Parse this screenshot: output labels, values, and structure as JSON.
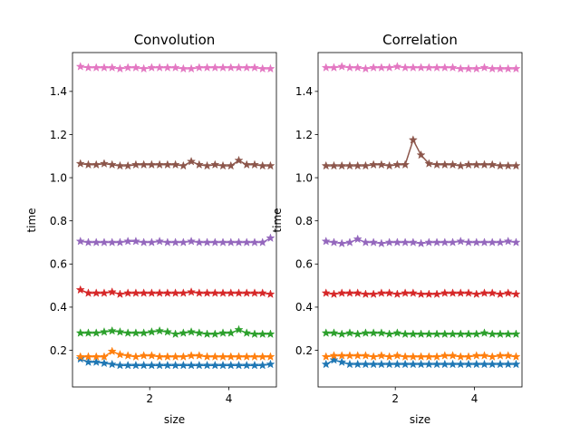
{
  "figure": {
    "background": "#ffffff"
  },
  "colors": [
    "#1f77b4",
    "#ff7f0e",
    "#2ca02c",
    "#d62728",
    "#9467bd",
    "#8c564b",
    "#e377c2"
  ],
  "chart_data": [
    {
      "type": "line",
      "title": "Convolution",
      "xlabel": "size",
      "ylabel": "time",
      "xlim": [
        0.05,
        5.2
      ],
      "ylim": [
        0.03,
        1.58
      ],
      "xticks": [
        2,
        4
      ],
      "yticks": [
        0.2,
        0.4,
        0.6,
        0.8,
        1.0,
        1.2,
        1.4
      ],
      "xtick_labels": [
        "2",
        "4"
      ],
      "ytick_labels": [
        "0.2",
        "0.4",
        "0.6",
        "0.8",
        "1.0",
        "1.2",
        "1.4"
      ],
      "marker": "star",
      "grid": false,
      "x": [
        0.25,
        0.45,
        0.65,
        0.85,
        1.05,
        1.25,
        1.45,
        1.65,
        1.85,
        2.05,
        2.25,
        2.45,
        2.65,
        2.85,
        3.05,
        3.25,
        3.45,
        3.65,
        3.85,
        4.05,
        4.25,
        4.45,
        4.65,
        4.85,
        5.05
      ],
      "series": [
        {
          "values": [
            0.16,
            0.145,
            0.145,
            0.14,
            0.135,
            0.13,
            0.13,
            0.13,
            0.13,
            0.13,
            0.13,
            0.13,
            0.13,
            0.13,
            0.13,
            0.13,
            0.13,
            0.13,
            0.13,
            0.13,
            0.13,
            0.13,
            0.13,
            0.13,
            0.135
          ]
        },
        {
          "values": [
            0.17,
            0.17,
            0.17,
            0.17,
            0.195,
            0.18,
            0.175,
            0.17,
            0.175,
            0.175,
            0.17,
            0.17,
            0.17,
            0.17,
            0.175,
            0.175,
            0.17,
            0.17,
            0.17,
            0.17,
            0.17,
            0.17,
            0.17,
            0.17,
            0.17
          ]
        },
        {
          "values": [
            0.28,
            0.28,
            0.28,
            0.285,
            0.29,
            0.285,
            0.28,
            0.28,
            0.28,
            0.285,
            0.29,
            0.285,
            0.275,
            0.28,
            0.285,
            0.28,
            0.275,
            0.275,
            0.28,
            0.28,
            0.295,
            0.28,
            0.275,
            0.275,
            0.275
          ]
        },
        {
          "values": [
            0.48,
            0.465,
            0.465,
            0.465,
            0.47,
            0.46,
            0.465,
            0.465,
            0.465,
            0.465,
            0.465,
            0.465,
            0.465,
            0.465,
            0.47,
            0.465,
            0.465,
            0.465,
            0.465,
            0.465,
            0.465,
            0.465,
            0.465,
            0.465,
            0.46
          ]
        },
        {
          "values": [
            0.705,
            0.7,
            0.7,
            0.7,
            0.7,
            0.7,
            0.705,
            0.705,
            0.7,
            0.7,
            0.705,
            0.7,
            0.7,
            0.7,
            0.705,
            0.7,
            0.7,
            0.7,
            0.7,
            0.7,
            0.7,
            0.7,
            0.7,
            0.7,
            0.72
          ]
        },
        {
          "values": [
            1.065,
            1.06,
            1.06,
            1.065,
            1.06,
            1.055,
            1.055,
            1.06,
            1.06,
            1.06,
            1.06,
            1.06,
            1.06,
            1.055,
            1.075,
            1.06,
            1.055,
            1.06,
            1.055,
            1.055,
            1.08,
            1.06,
            1.06,
            1.055,
            1.055
          ]
        },
        {
          "values": [
            1.515,
            1.51,
            1.51,
            1.51,
            1.51,
            1.505,
            1.51,
            1.51,
            1.505,
            1.51,
            1.51,
            1.51,
            1.51,
            1.505,
            1.505,
            1.51,
            1.51,
            1.51,
            1.51,
            1.51,
            1.51,
            1.51,
            1.51,
            1.505,
            1.505
          ]
        }
      ]
    },
    {
      "type": "line",
      "title": "Correlation",
      "xlabel": "size",
      "ylabel": "time",
      "xlim": [
        0.05,
        5.2
      ],
      "ylim": [
        0.03,
        1.58
      ],
      "xticks": [
        2,
        4
      ],
      "yticks": [
        0.2,
        0.4,
        0.6,
        0.8,
        1.0,
        1.2,
        1.4
      ],
      "xtick_labels": [
        "2",
        "4"
      ],
      "ytick_labels": [
        "0.2",
        "0.4",
        "0.6",
        "0.8",
        "1.0",
        "1.2",
        "1.4"
      ],
      "marker": "star",
      "grid": false,
      "x": [
        0.25,
        0.45,
        0.65,
        0.85,
        1.05,
        1.25,
        1.45,
        1.65,
        1.85,
        2.05,
        2.25,
        2.45,
        2.65,
        2.85,
        3.05,
        3.25,
        3.45,
        3.65,
        3.85,
        4.05,
        4.25,
        4.45,
        4.65,
        4.85,
        5.05
      ],
      "series": [
        {
          "values": [
            0.135,
            0.155,
            0.145,
            0.135,
            0.135,
            0.135,
            0.135,
            0.135,
            0.135,
            0.135,
            0.135,
            0.135,
            0.135,
            0.135,
            0.135,
            0.135,
            0.135,
            0.135,
            0.135,
            0.135,
            0.135,
            0.135,
            0.135,
            0.135,
            0.135
          ]
        },
        {
          "values": [
            0.17,
            0.175,
            0.175,
            0.175,
            0.175,
            0.175,
            0.17,
            0.175,
            0.17,
            0.175,
            0.17,
            0.17,
            0.17,
            0.17,
            0.17,
            0.175,
            0.175,
            0.17,
            0.17,
            0.175,
            0.175,
            0.17,
            0.175,
            0.175,
            0.17
          ]
        },
        {
          "values": [
            0.28,
            0.28,
            0.275,
            0.28,
            0.275,
            0.28,
            0.28,
            0.28,
            0.275,
            0.28,
            0.275,
            0.275,
            0.275,
            0.275,
            0.275,
            0.275,
            0.275,
            0.275,
            0.275,
            0.275,
            0.28,
            0.275,
            0.275,
            0.275,
            0.275
          ]
        },
        {
          "values": [
            0.465,
            0.46,
            0.465,
            0.465,
            0.465,
            0.46,
            0.46,
            0.465,
            0.465,
            0.46,
            0.465,
            0.465,
            0.46,
            0.46,
            0.46,
            0.465,
            0.465,
            0.465,
            0.465,
            0.46,
            0.465,
            0.465,
            0.46,
            0.465,
            0.46
          ]
        },
        {
          "values": [
            0.705,
            0.7,
            0.695,
            0.7,
            0.715,
            0.7,
            0.7,
            0.695,
            0.7,
            0.7,
            0.7,
            0.7,
            0.695,
            0.7,
            0.7,
            0.7,
            0.7,
            0.705,
            0.7,
            0.7,
            0.7,
            0.7,
            0.7,
            0.705,
            0.7
          ]
        },
        {
          "values": [
            1.055,
            1.055,
            1.055,
            1.055,
            1.055,
            1.055,
            1.06,
            1.06,
            1.055,
            1.06,
            1.06,
            1.175,
            1.105,
            1.065,
            1.06,
            1.06,
            1.06,
            1.055,
            1.06,
            1.06,
            1.06,
            1.06,
            1.055,
            1.055,
            1.055
          ]
        },
        {
          "values": [
            1.51,
            1.51,
            1.515,
            1.51,
            1.51,
            1.505,
            1.51,
            1.51,
            1.51,
            1.515,
            1.51,
            1.51,
            1.51,
            1.51,
            1.51,
            1.51,
            1.51,
            1.505,
            1.505,
            1.505,
            1.51,
            1.505,
            1.505,
            1.505,
            1.505
          ]
        }
      ]
    }
  ]
}
